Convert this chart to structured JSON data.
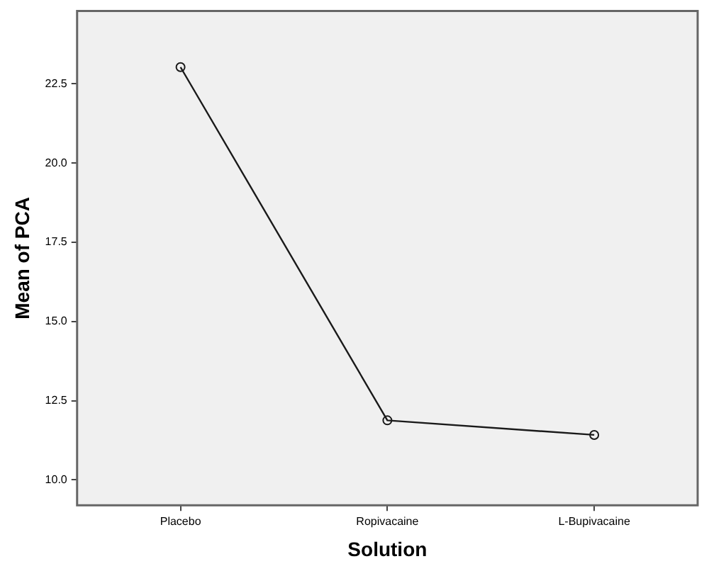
{
  "chart_data": {
    "type": "line",
    "xlabel": "Solution",
    "ylabel": "Mean of PCA",
    "categories": [
      "Placebo",
      "Ropivacaine",
      "L-Bupivacaine"
    ],
    "series": [
      {
        "color": "#1a1a1a",
        "values": [
          23.03,
          11.88,
          11.42
        ]
      }
    ],
    "ylim": [
      9.2,
      24.8
    ],
    "yticks": [
      {
        "value": 10,
        "label": "10.0"
      },
      {
        "value": 12.5,
        "label": "12.5"
      },
      {
        "value": 15,
        "label": "15.0"
      },
      {
        "value": 17.5,
        "label": "17.5"
      },
      {
        "value": 20,
        "label": "20.0"
      },
      {
        "value": 22.5,
        "label": "22.5"
      }
    ],
    "grid": false,
    "legend": false,
    "marker": "circle",
    "line_style": "solid"
  }
}
